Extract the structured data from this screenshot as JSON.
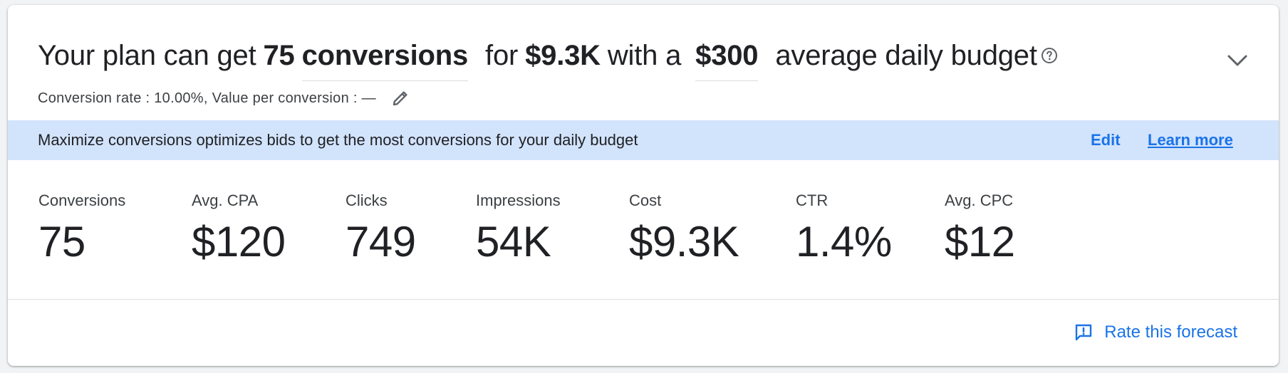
{
  "headline": {
    "prefix": "Your plan can get",
    "conversions_value": "75",
    "conversions_field": "conversions",
    "for_text": "for",
    "cost_value": "$9.3K",
    "with_text": "with a",
    "budget_field": "$300",
    "suffix": "average daily budget",
    "help_icon": "help-circle-icon"
  },
  "subline": {
    "text": "Conversion rate : 10.00%, Value per conversion : —",
    "edit_icon": "pencil-icon"
  },
  "banner": {
    "message": "Maximize conversions optimizes bids to get the most conversions for your daily budget",
    "edit_label": "Edit",
    "learn_more_label": "Learn more"
  },
  "metrics": [
    {
      "label": "Conversions",
      "value": "75"
    },
    {
      "label": "Avg. CPA",
      "value": "$120"
    },
    {
      "label": "Clicks",
      "value": "749"
    },
    {
      "label": "Impressions",
      "value": "54K"
    },
    {
      "label": "Cost",
      "value": "$9.3K"
    },
    {
      "label": "CTR",
      "value": "1.4%"
    },
    {
      "label": "Avg. CPC",
      "value": "$12"
    }
  ],
  "footer": {
    "rate_label": "Rate this forecast",
    "rate_icon": "feedback-icon"
  },
  "colors": {
    "accent": "#1a73e8",
    "banner_bg": "#d2e3fc",
    "text": "#202124",
    "secondary_text": "#3c4043"
  }
}
